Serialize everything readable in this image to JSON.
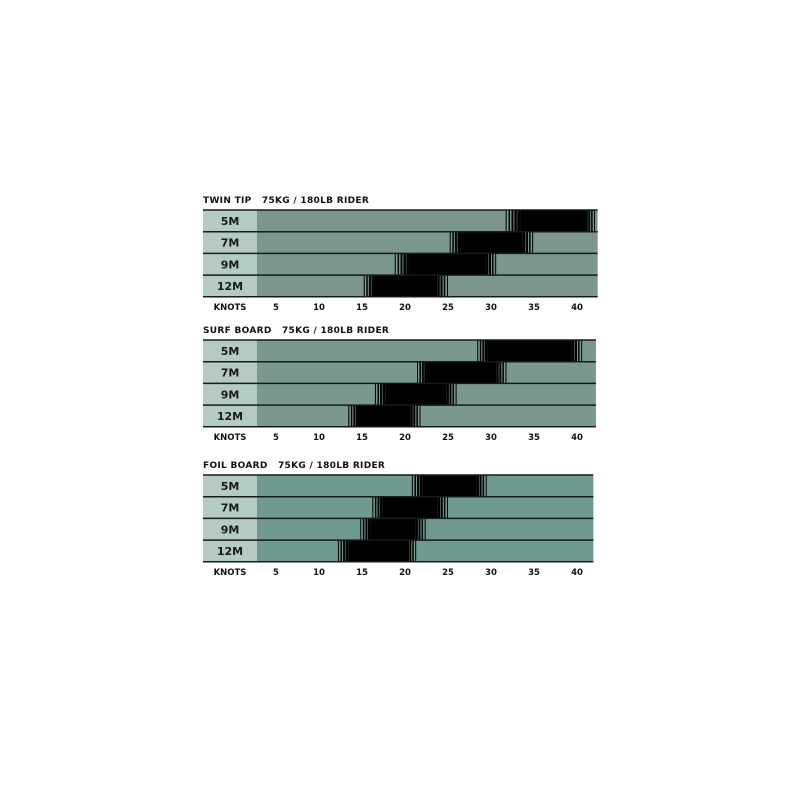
{
  "colors": {
    "label_bg": "#b3cbc3",
    "range_solid": "#000000",
    "divider": "#1a1a1a"
  },
  "chart_data": [
    {
      "type": "bar",
      "subtype": "floating-range",
      "title": "TWIN TIP",
      "subtitle": "75KG / 180LB RIDER",
      "bar_color": "#7b978c",
      "xlabel": "KNOTS",
      "xticks": [
        5,
        10,
        15,
        20,
        25,
        30,
        35,
        40
      ],
      "xlim": [
        2.8,
        42.4
      ],
      "categories": [
        "5M",
        "7M",
        "9M",
        "12M"
      ],
      "rows": [
        {
          "label": "5M",
          "fade_start": 31.7,
          "start": 33.4,
          "end": 40.7,
          "fade_end": 42.1
        },
        {
          "label": "7M",
          "fade_start": 25.2,
          "start": 26.7,
          "end": 33.4,
          "fade_end": 34.9
        },
        {
          "label": "9M",
          "fade_start": 18.8,
          "start": 20.5,
          "end": 29.1,
          "fade_end": 30.6
        },
        {
          "label": "12M",
          "fade_start": 15.2,
          "start": 16.7,
          "end": 23.4,
          "fade_end": 25.0
        }
      ]
    },
    {
      "type": "bar",
      "subtype": "floating-range",
      "title": "SURF BOARD",
      "subtitle": "75KG / 180LB RIDER",
      "bar_color": "#7a988d",
      "xlabel": "KNOTS",
      "xticks": [
        5,
        10,
        15,
        20,
        25,
        30,
        35,
        40
      ],
      "xlim": [
        2.8,
        42.2
      ],
      "categories": [
        "5M",
        "7M",
        "9M",
        "12M"
      ],
      "rows": [
        {
          "label": "5M",
          "fade_start": 28.4,
          "start": 29.9,
          "end": 39.1,
          "fade_end": 40.6
        },
        {
          "label": "7M",
          "fade_start": 21.4,
          "start": 22.8,
          "end": 30.3,
          "fade_end": 31.8
        },
        {
          "label": "9M",
          "fade_start": 16.5,
          "start": 18.0,
          "end": 24.5,
          "fade_end": 26.0
        },
        {
          "label": "12M",
          "fade_start": 13.4,
          "start": 14.9,
          "end": 20.3,
          "fade_end": 21.8
        }
      ]
    },
    {
      "type": "bar",
      "subtype": "floating-range",
      "title": "FOIL BOARD",
      "subtitle": "75KG / 180LB RIDER",
      "bar_color": "#6f9a90",
      "xlabel": "KNOTS",
      "xticks": [
        5,
        10,
        15,
        20,
        25,
        30,
        35,
        40
      ],
      "xlim": [
        2.8,
        41.9
      ],
      "categories": [
        "5M",
        "7M",
        "9M",
        "12M"
      ],
      "rows": [
        {
          "label": "5M",
          "fade_start": 20.8,
          "start": 22.3,
          "end": 28.0,
          "fade_end": 29.5
        },
        {
          "label": "7M",
          "fade_start": 16.2,
          "start": 17.7,
          "end": 23.5,
          "fade_end": 25.0
        },
        {
          "label": "9M",
          "fade_start": 14.8,
          "start": 16.3,
          "end": 20.9,
          "fade_end": 22.4
        },
        {
          "label": "12M",
          "fade_start": 12.2,
          "start": 13.7,
          "end": 19.9,
          "fade_end": 21.3
        }
      ]
    }
  ]
}
